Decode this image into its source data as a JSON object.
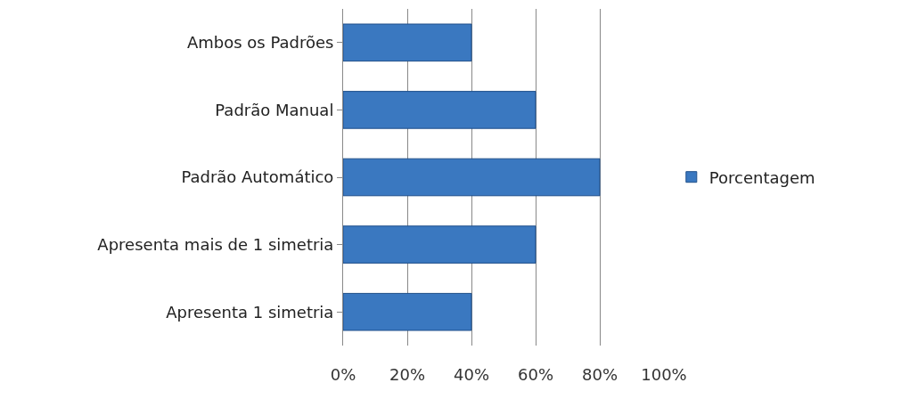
{
  "chart_data": {
    "type": "bar",
    "orientation": "horizontal",
    "categories": [
      "Ambos os Padrões",
      "Padrão Manual",
      "Padrão Automático",
      "Apresenta mais de 1 simetria",
      "Apresenta 1 simetria"
    ],
    "series": [
      {
        "name": "Porcentagem",
        "color": "#3a78c0",
        "values": [
          40,
          60,
          80,
          60,
          40
        ]
      }
    ],
    "xlim": [
      0,
      100
    ],
    "xticks": [
      {
        "value": 0,
        "label": "0%"
      },
      {
        "value": 20,
        "label": "20%"
      },
      {
        "value": 40,
        "label": "40%"
      },
      {
        "value": 60,
        "label": "60%"
      },
      {
        "value": 80,
        "label": "80%"
      },
      {
        "value": 100,
        "label": "100%"
      }
    ],
    "grid": "x",
    "legend": "right"
  }
}
